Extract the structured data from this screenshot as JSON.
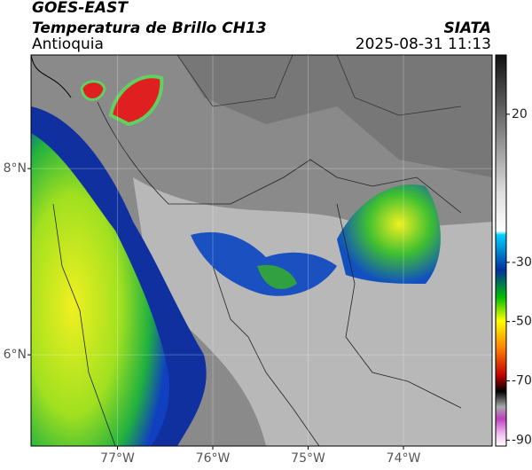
{
  "header": {
    "title": "GOES-EAST",
    "subtitle": "Temperatura de Brillo CH13",
    "region": "Antioquia",
    "source": "SIATA",
    "datetime": "2025-08-31 11:13"
  },
  "map": {
    "xlim": [
      -77.907,
      -73.07
    ],
    "ylim": [
      5.02,
      9.22
    ],
    "xticks": [
      {
        "value": -77,
        "label": "77°W"
      },
      {
        "value": -76,
        "label": "76°W"
      },
      {
        "value": -75,
        "label": "75°W"
      },
      {
        "value": -74,
        "label": "74°W"
      }
    ],
    "yticks": [
      {
        "value": 8,
        "label": "8°N"
      },
      {
        "value": 6,
        "label": "6°N"
      }
    ]
  },
  "colorbar": {
    "lim": [
      -92,
      40
    ],
    "ticks": [
      20,
      -30,
      -50,
      -70,
      -90
    ]
  }
}
